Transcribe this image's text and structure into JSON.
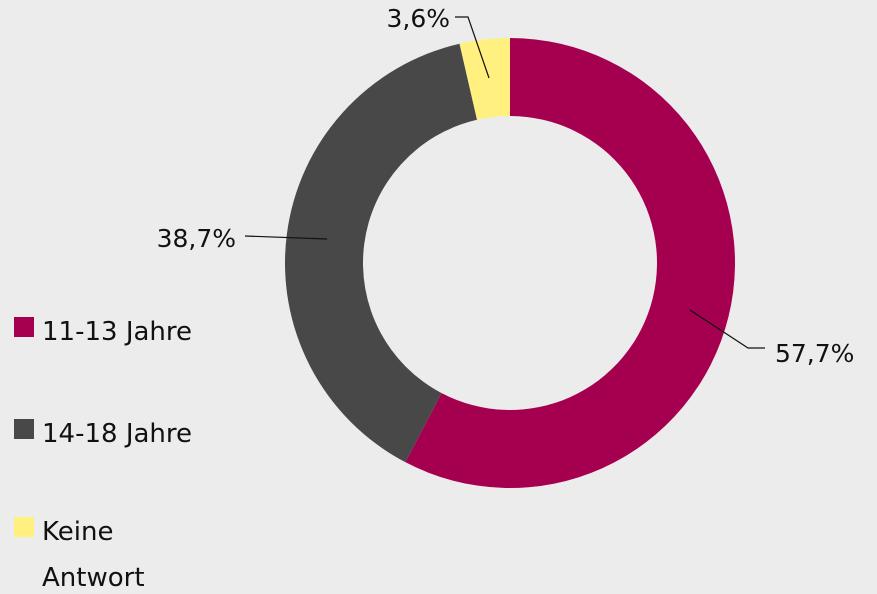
{
  "chart_data": {
    "type": "pie",
    "categories": [
      "11-13 Jahre",
      "14-18 Jahre",
      "Keine Antwort"
    ],
    "values": [
      57.7,
      38.7,
      3.6
    ],
    "value_labels": [
      "57,7%",
      "38,7%",
      "3,6%"
    ],
    "colors": [
      "#a5004f",
      "#484848",
      "#fff07f"
    ],
    "donut": true,
    "legend": "left"
  }
}
